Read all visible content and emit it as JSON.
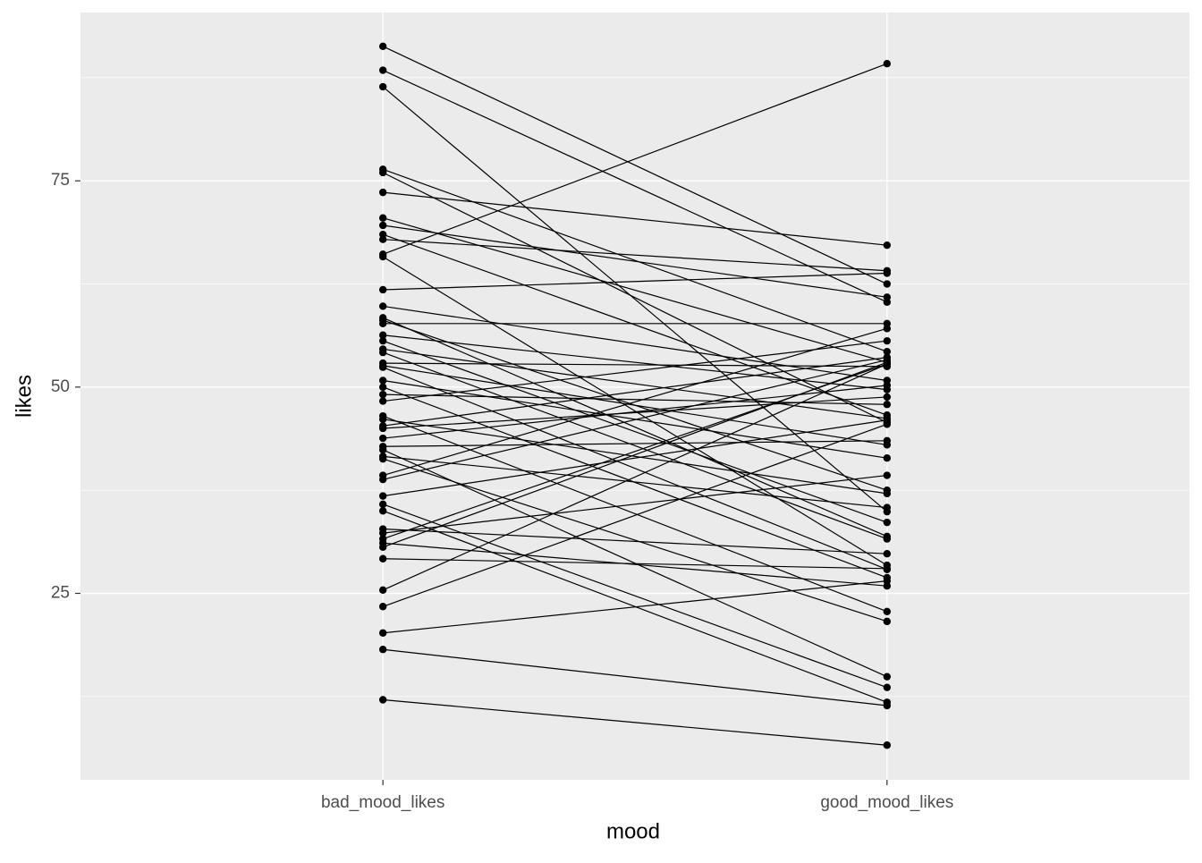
{
  "chart_data": {
    "type": "line",
    "x_label": "mood",
    "y_label": "likes",
    "categories": [
      "bad_mood_likes",
      "good_mood_likes"
    ],
    "color": "#000000",
    "values": [
      [
        91.3,
        62.5
      ],
      [
        88.4,
        60.3
      ],
      [
        86.4,
        34.9
      ],
      [
        76.4,
        54.3
      ],
      [
        76.0,
        45.7
      ],
      [
        73.6,
        67.2
      ],
      [
        70.5,
        53.0
      ],
      [
        69.6,
        60.9
      ],
      [
        68.5,
        46.6
      ],
      [
        67.9,
        64.1
      ],
      [
        66.1,
        89.2
      ],
      [
        65.8,
        28.4
      ],
      [
        61.8,
        63.8
      ],
      [
        59.8,
        50.8
      ],
      [
        58.4,
        31.9
      ],
      [
        58.1,
        37.5
      ],
      [
        57.7,
        57.7
      ],
      [
        56.3,
        49.7
      ],
      [
        55.6,
        33.6
      ],
      [
        54.6,
        46.2
      ],
      [
        54.2,
        31.6
      ],
      [
        52.9,
        52.5
      ],
      [
        52.6,
        43.0
      ],
      [
        52.4,
        27.9
      ],
      [
        50.8,
        41.4
      ],
      [
        50.0,
        26.9
      ],
      [
        49.1,
        47.9
      ],
      [
        48.3,
        55.6
      ],
      [
        46.5,
        22.8
      ],
      [
        46.1,
        37.1
      ],
      [
        45.3,
        53.6
      ],
      [
        45.0,
        48.8
      ],
      [
        43.8,
        50.2
      ],
      [
        42.8,
        43.5
      ],
      [
        42.4,
        14.9
      ],
      [
        41.6,
        35.4
      ],
      [
        41.3,
        21.6
      ],
      [
        39.3,
        57.1
      ],
      [
        38.8,
        53.3
      ],
      [
        36.8,
        46.0
      ],
      [
        35.8,
        13.6
      ],
      [
        35.0,
        11.8
      ],
      [
        32.8,
        29.8
      ],
      [
        32.3,
        39.3
      ],
      [
        31.6,
        52.8
      ],
      [
        31.1,
        25.9
      ],
      [
        30.6,
        53.0
      ],
      [
        29.2,
        28.0
      ],
      [
        25.4,
        52.8
      ],
      [
        23.4,
        45.5
      ],
      [
        20.2,
        26.5
      ],
      [
        18.2,
        11.4
      ],
      [
        12.1,
        6.6
      ]
    ],
    "ylim": [
      2.4,
      95.4
    ],
    "yticks": [
      25,
      50,
      75
    ],
    "minor_yticks": [
      12.5,
      37.5,
      62.5,
      87.5
    ],
    "grid": true
  }
}
